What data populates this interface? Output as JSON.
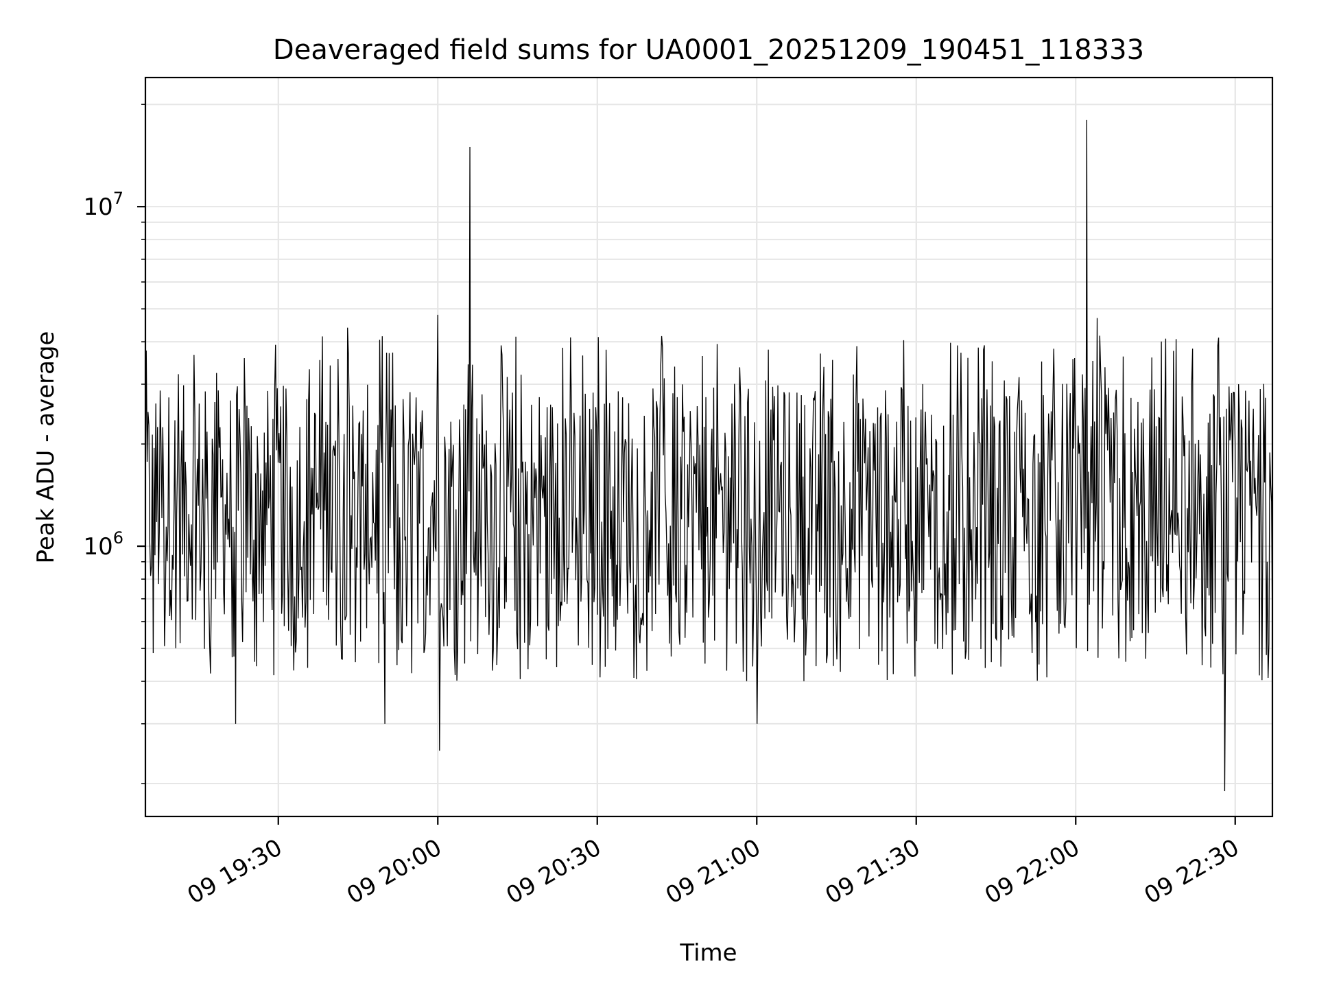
{
  "chart_data": {
    "type": "line",
    "title": "Deaveraged field sums for UA0001_20251209_190451_118333",
    "xlabel": "Time",
    "ylabel": "Peak ADU - average",
    "yscale": "log",
    "ylim": [
      160000,
      24000000
    ],
    "xlim_minutes": [
      1145,
      1357
    ],
    "grid": true,
    "x_ticks": [
      {
        "minute": 1170,
        "label": "09 19:30"
      },
      {
        "minute": 1200,
        "label": "09 20:00"
      },
      {
        "minute": 1230,
        "label": "09 20:30"
      },
      {
        "minute": 1260,
        "label": "09 21:00"
      },
      {
        "minute": 1290,
        "label": "09 21:30"
      },
      {
        "minute": 1320,
        "label": "09 22:00"
      },
      {
        "minute": 1350,
        "label": "09 22:30"
      }
    ],
    "y_ticks": [
      {
        "value": 1000000,
        "base": "10",
        "exp": "6"
      },
      {
        "value": 10000000,
        "base": "10",
        "exp": "7"
      }
    ],
    "series": [
      {
        "name": "Peak ADU - average",
        "color": "#000000",
        "sampling": "noisy series sampled approximately every 10 s from 09 19:05 to 09 22:37",
        "x_start_minute": 1145,
        "x_end_minute": 1357,
        "typical_low": 600000,
        "typical_high": 3000000,
        "min_observed": 190000,
        "max_observed": 18000000,
        "notable_points": [
          {
            "minute": 1206,
            "value": 15000000
          },
          {
            "minute": 1322,
            "value": 18000000
          },
          {
            "minute": 1200,
            "value": 4800000
          },
          {
            "minute": 1324,
            "value": 4700000
          },
          {
            "minute": 1183,
            "value": 4400000
          },
          {
            "minute": 1200,
            "value": 250000
          },
          {
            "minute": 1190,
            "value": 300000
          },
          {
            "minute": 1162,
            "value": 300000
          },
          {
            "minute": 1260,
            "value": 300000
          },
          {
            "minute": 1348,
            "value": 190000
          }
        ]
      }
    ]
  }
}
